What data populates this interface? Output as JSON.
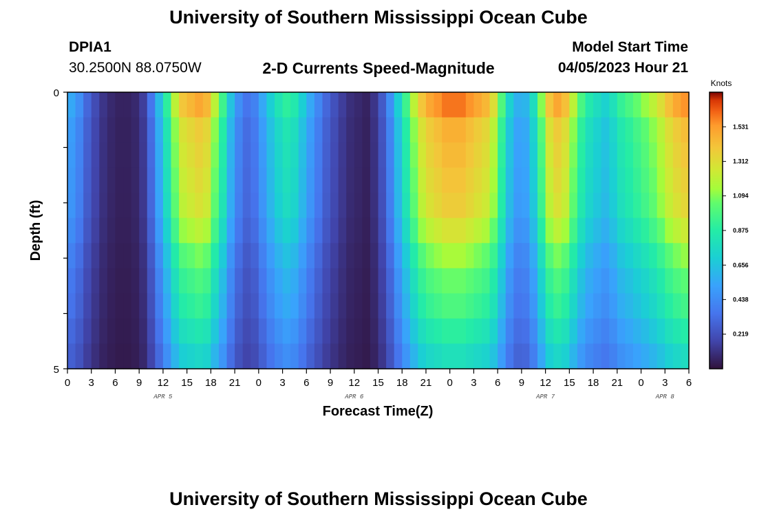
{
  "header": {
    "title": "University of Southern Mississippi Ocean Cube",
    "station_id": "DPIA1",
    "coords": "30.2500N  88.0750W",
    "plot_title": "2-D Currents Speed-Magnitude",
    "model_start_label": "Model Start Time",
    "model_start_value": "04/05/2023 Hour 21"
  },
  "footer": {
    "title": "University of Southern Mississippi Ocean Cube"
  },
  "chart_data": {
    "type": "heatmap",
    "title": "2-D Currents Speed-Magnitude",
    "xlabel": "Forecast Time(Z)",
    "ylabel": "Depth (ft)",
    "ylim": [
      0,
      5
    ],
    "y_tick_labels": [
      "0",
      "5"
    ],
    "x_tick_labels": [
      "0",
      "3",
      "6",
      "9",
      "12",
      "15",
      "18",
      "21",
      "0",
      "3",
      "6",
      "9",
      "12",
      "15",
      "18",
      "21",
      "0",
      "3",
      "6",
      "9",
      "12",
      "15",
      "18",
      "21",
      "0",
      "3",
      "6"
    ],
    "date_labels": [
      {
        "text": "APR 5",
        "at_hour": 12
      },
      {
        "text": "APR 6",
        "at_hour": 36
      },
      {
        "text": "APR 7",
        "at_hour": 60
      },
      {
        "text": "APR 8",
        "at_hour": 75
      }
    ],
    "x_hours_range": [
      0,
      78
    ],
    "colorbar": {
      "label": "Knots",
      "range": [
        0,
        1.75
      ],
      "ticks": [
        "0.219",
        "0.438",
        "0.656",
        "0.875",
        "1.094",
        "1.312",
        "1.531"
      ]
    },
    "depth_rows": 5,
    "time_step_hours": 1,
    "surface_profile_knots": [
      0.55,
      0.45,
      0.3,
      0.2,
      0.12,
      0.08,
      0.06,
      0.06,
      0.08,
      0.15,
      0.35,
      0.62,
      0.9,
      1.2,
      1.4,
      1.45,
      1.5,
      1.45,
      1.2,
      0.95,
      0.65,
      0.45,
      0.35,
      0.4,
      0.55,
      0.7,
      0.82,
      0.9,
      0.85,
      0.7,
      0.55,
      0.42,
      0.3,
      0.22,
      0.15,
      0.1,
      0.08,
      0.06,
      0.12,
      0.25,
      0.45,
      0.7,
      0.95,
      1.2,
      1.4,
      1.5,
      1.55,
      1.6,
      1.6,
      1.6,
      1.55,
      1.5,
      1.45,
      1.3,
      1.0,
      0.72,
      0.58,
      0.6,
      0.78,
      1.1,
      1.4,
      1.5,
      1.42,
      1.2,
      0.98,
      0.85,
      0.78,
      0.72,
      0.8,
      0.92,
      0.98,
      1.05,
      1.12,
      1.2,
      1.3,
      1.42,
      1.5,
      1.55
    ],
    "depth_factors": [
      1.0,
      0.92,
      0.9,
      0.88,
      0.86,
      0.8,
      0.72,
      0.66,
      0.62,
      0.56,
      0.5
    ]
  }
}
